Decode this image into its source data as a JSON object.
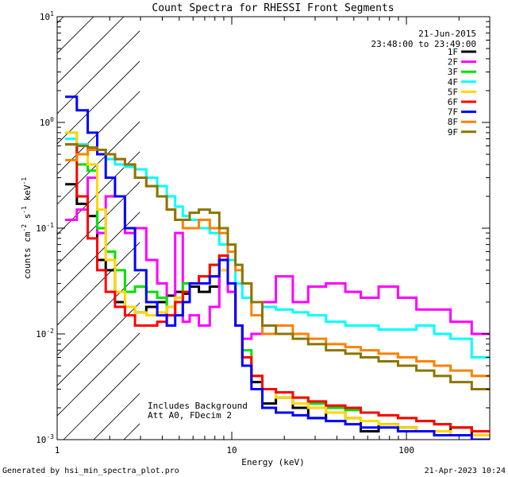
{
  "chart_data": {
    "type": "line",
    "title": "Count Spectra for RHESSI Front Segments",
    "xlabel": "Energy (keV)",
    "ylabel": "counts cm",
    "ylabel_sup1": "-2",
    "ylabel_mid": " s",
    "ylabel_sup2": "-1",
    "ylabel_end": " keV",
    "ylabel_sup3": "-1",
    "x_scale": "log",
    "y_scale": "log",
    "xlim": [
      1,
      300
    ],
    "ylim": [
      0.001,
      10
    ],
    "x_ticks": [
      {
        "value": 1,
        "label": "1"
      },
      {
        "value": 10,
        "label": "10"
      },
      {
        "value": 100,
        "label": "100"
      }
    ],
    "y_ticks": [
      {
        "value": 0.001,
        "base": "10",
        "exp": "-3"
      },
      {
        "value": 0.01,
        "base": "10",
        "exp": "-2"
      },
      {
        "value": 0.1,
        "base": "10",
        "exp": "-1"
      },
      {
        "value": 1,
        "base": "10",
        "exp": "0"
      },
      {
        "value": 10,
        "base": "10",
        "exp": "1"
      }
    ],
    "hatch_region": {
      "x_min": 1,
      "x_max": 3
    },
    "date_text": "21-Jun-2015",
    "time_text": "23:48:00 to 23:49:00",
    "annotation_line1": "Includes Background",
    "annotation_line2": "Att A0, FDecim 2",
    "footer_left": "Generated by hsi_min_spectra_plot.pro",
    "footer_right": "21-Apr-2023 10:24",
    "series": [
      {
        "name": "1F",
        "color": "#000000",
        "values": [
          0.26,
          0.17,
          0.13,
          0.05,
          0.04,
          0.02,
          0.018,
          0.016,
          0.018,
          0.02,
          0.023,
          0.025,
          0.024,
          0.028,
          0.025,
          0.028,
          0.055,
          0.03,
          0.012,
          0.006,
          0.0035,
          0.0022,
          0.0025,
          0.002,
          0.0016,
          0.0018,
          0.0016,
          0.0012,
          0.0014,
          0.0013,
          0.0012,
          0.0011,
          0.0013,
          0.0011
        ]
      },
      {
        "name": "2F",
        "color": "#ff00ff",
        "values": [
          0.12,
          0.15,
          0.3,
          0.09,
          0.2,
          0.2,
          0.09,
          0.1,
          0.05,
          0.03,
          0.015,
          0.09,
          0.013,
          0.015,
          0.012,
          0.018,
          0.04,
          0.025,
          0.012,
          0.009,
          0.01,
          0.02,
          0.035,
          0.02,
          0.028,
          0.03,
          0.025,
          0.022,
          0.028,
          0.022,
          0.017,
          0.017,
          0.013,
          0.01
        ]
      },
      {
        "name": "3F",
        "color": "#00e000",
        "values": [
          0.8,
          0.4,
          0.35,
          0.1,
          0.06,
          0.04,
          0.025,
          0.028,
          0.025,
          0.022,
          0.018,
          0.02,
          0.03,
          0.03,
          0.035,
          0.045,
          0.055,
          0.03,
          0.012,
          0.007,
          0.004,
          0.003,
          0.0028,
          0.0025,
          0.0022,
          0.002,
          0.0019,
          0.0018,
          0.0017,
          0.0016,
          0.0015,
          0.0014,
          0.0013,
          0.0012
        ]
      },
      {
        "name": "4F",
        "color": "#00ffff",
        "values": [
          0.7,
          0.62,
          0.55,
          0.5,
          0.45,
          0.4,
          0.38,
          0.36,
          0.3,
          0.25,
          0.2,
          0.16,
          0.13,
          0.12,
          0.1,
          0.09,
          0.07,
          0.05,
          0.03,
          0.022,
          0.02,
          0.018,
          0.017,
          0.016,
          0.015,
          0.013,
          0.012,
          0.012,
          0.011,
          0.011,
          0.012,
          0.01,
          0.009,
          0.006
        ]
      },
      {
        "name": "5F",
        "color": "#ffd700",
        "values": [
          0.8,
          0.6,
          0.4,
          0.15,
          0.05,
          0.025,
          0.018,
          0.016,
          0.015,
          0.016,
          0.018,
          0.022,
          0.025,
          0.03,
          0.03,
          0.035,
          0.04,
          0.03,
          0.012,
          0.006,
          0.004,
          0.003,
          0.0025,
          0.0022,
          0.002,
          0.0018,
          0.0016,
          0.0015,
          0.0014,
          0.0013,
          0.0012,
          0.0012,
          0.0011,
          0.0011
        ]
      },
      {
        "name": "6F",
        "color": "#ff0000",
        "values": [
          0.62,
          0.2,
          0.08,
          0.04,
          0.025,
          0.018,
          0.015,
          0.012,
          0.012,
          0.013,
          0.015,
          0.02,
          0.025,
          0.03,
          0.035,
          0.045,
          0.055,
          0.03,
          0.012,
          0.006,
          0.004,
          0.003,
          0.0028,
          0.0025,
          0.0023,
          0.0021,
          0.002,
          0.0018,
          0.0017,
          0.0016,
          0.0015,
          0.0014,
          0.0013,
          0.0012
        ]
      },
      {
        "name": "7F",
        "color": "#0000ff",
        "values": [
          1.75,
          1.3,
          0.8,
          0.5,
          0.3,
          0.2,
          0.1,
          0.04,
          0.02,
          0.015,
          0.012,
          0.015,
          0.02,
          0.03,
          0.03,
          0.035,
          0.05,
          0.03,
          0.012,
          0.005,
          0.003,
          0.002,
          0.0018,
          0.0017,
          0.0016,
          0.0015,
          0.0014,
          0.0013,
          0.0013,
          0.0012,
          0.0012,
          0.0011,
          0.0011,
          0.001
        ]
      },
      {
        "name": "8F",
        "color": "#ff8000",
        "values": [
          0.44,
          0.5,
          0.55,
          0.55,
          0.5,
          0.45,
          0.4,
          0.3,
          0.25,
          0.2,
          0.15,
          0.12,
          0.1,
          0.1,
          0.12,
          0.1,
          0.09,
          0.06,
          0.04,
          0.03,
          0.015,
          0.01,
          0.012,
          0.01,
          0.009,
          0.008,
          0.0075,
          0.007,
          0.0065,
          0.006,
          0.0055,
          0.005,
          0.0045,
          0.004
        ]
      },
      {
        "name": "9F",
        "color": "#8b7500",
        "values": [
          0.62,
          0.6,
          0.58,
          0.55,
          0.5,
          0.45,
          0.4,
          0.3,
          0.25,
          0.2,
          0.15,
          0.12,
          0.12,
          0.14,
          0.15,
          0.14,
          0.1,
          0.07,
          0.045,
          0.03,
          0.02,
          0.012,
          0.01,
          0.009,
          0.008,
          0.007,
          0.0065,
          0.006,
          0.0055,
          0.005,
          0.0045,
          0.004,
          0.0035,
          0.003
        ]
      }
    ],
    "x": [
      1.2,
      1.4,
      1.6,
      1.8,
      2.0,
      2.3,
      2.6,
      3.0,
      3.5,
      4.0,
      4.5,
      5.0,
      5.5,
      6.0,
      7.0,
      8.0,
      9.0,
      10.0,
      11.0,
      12.0,
      14.0,
      16.0,
      20.0,
      25.0,
      30.0,
      40.0,
      50.0,
      60.0,
      80.0,
      100.0,
      130.0,
      160.0,
      200.0,
      280.0
    ]
  }
}
